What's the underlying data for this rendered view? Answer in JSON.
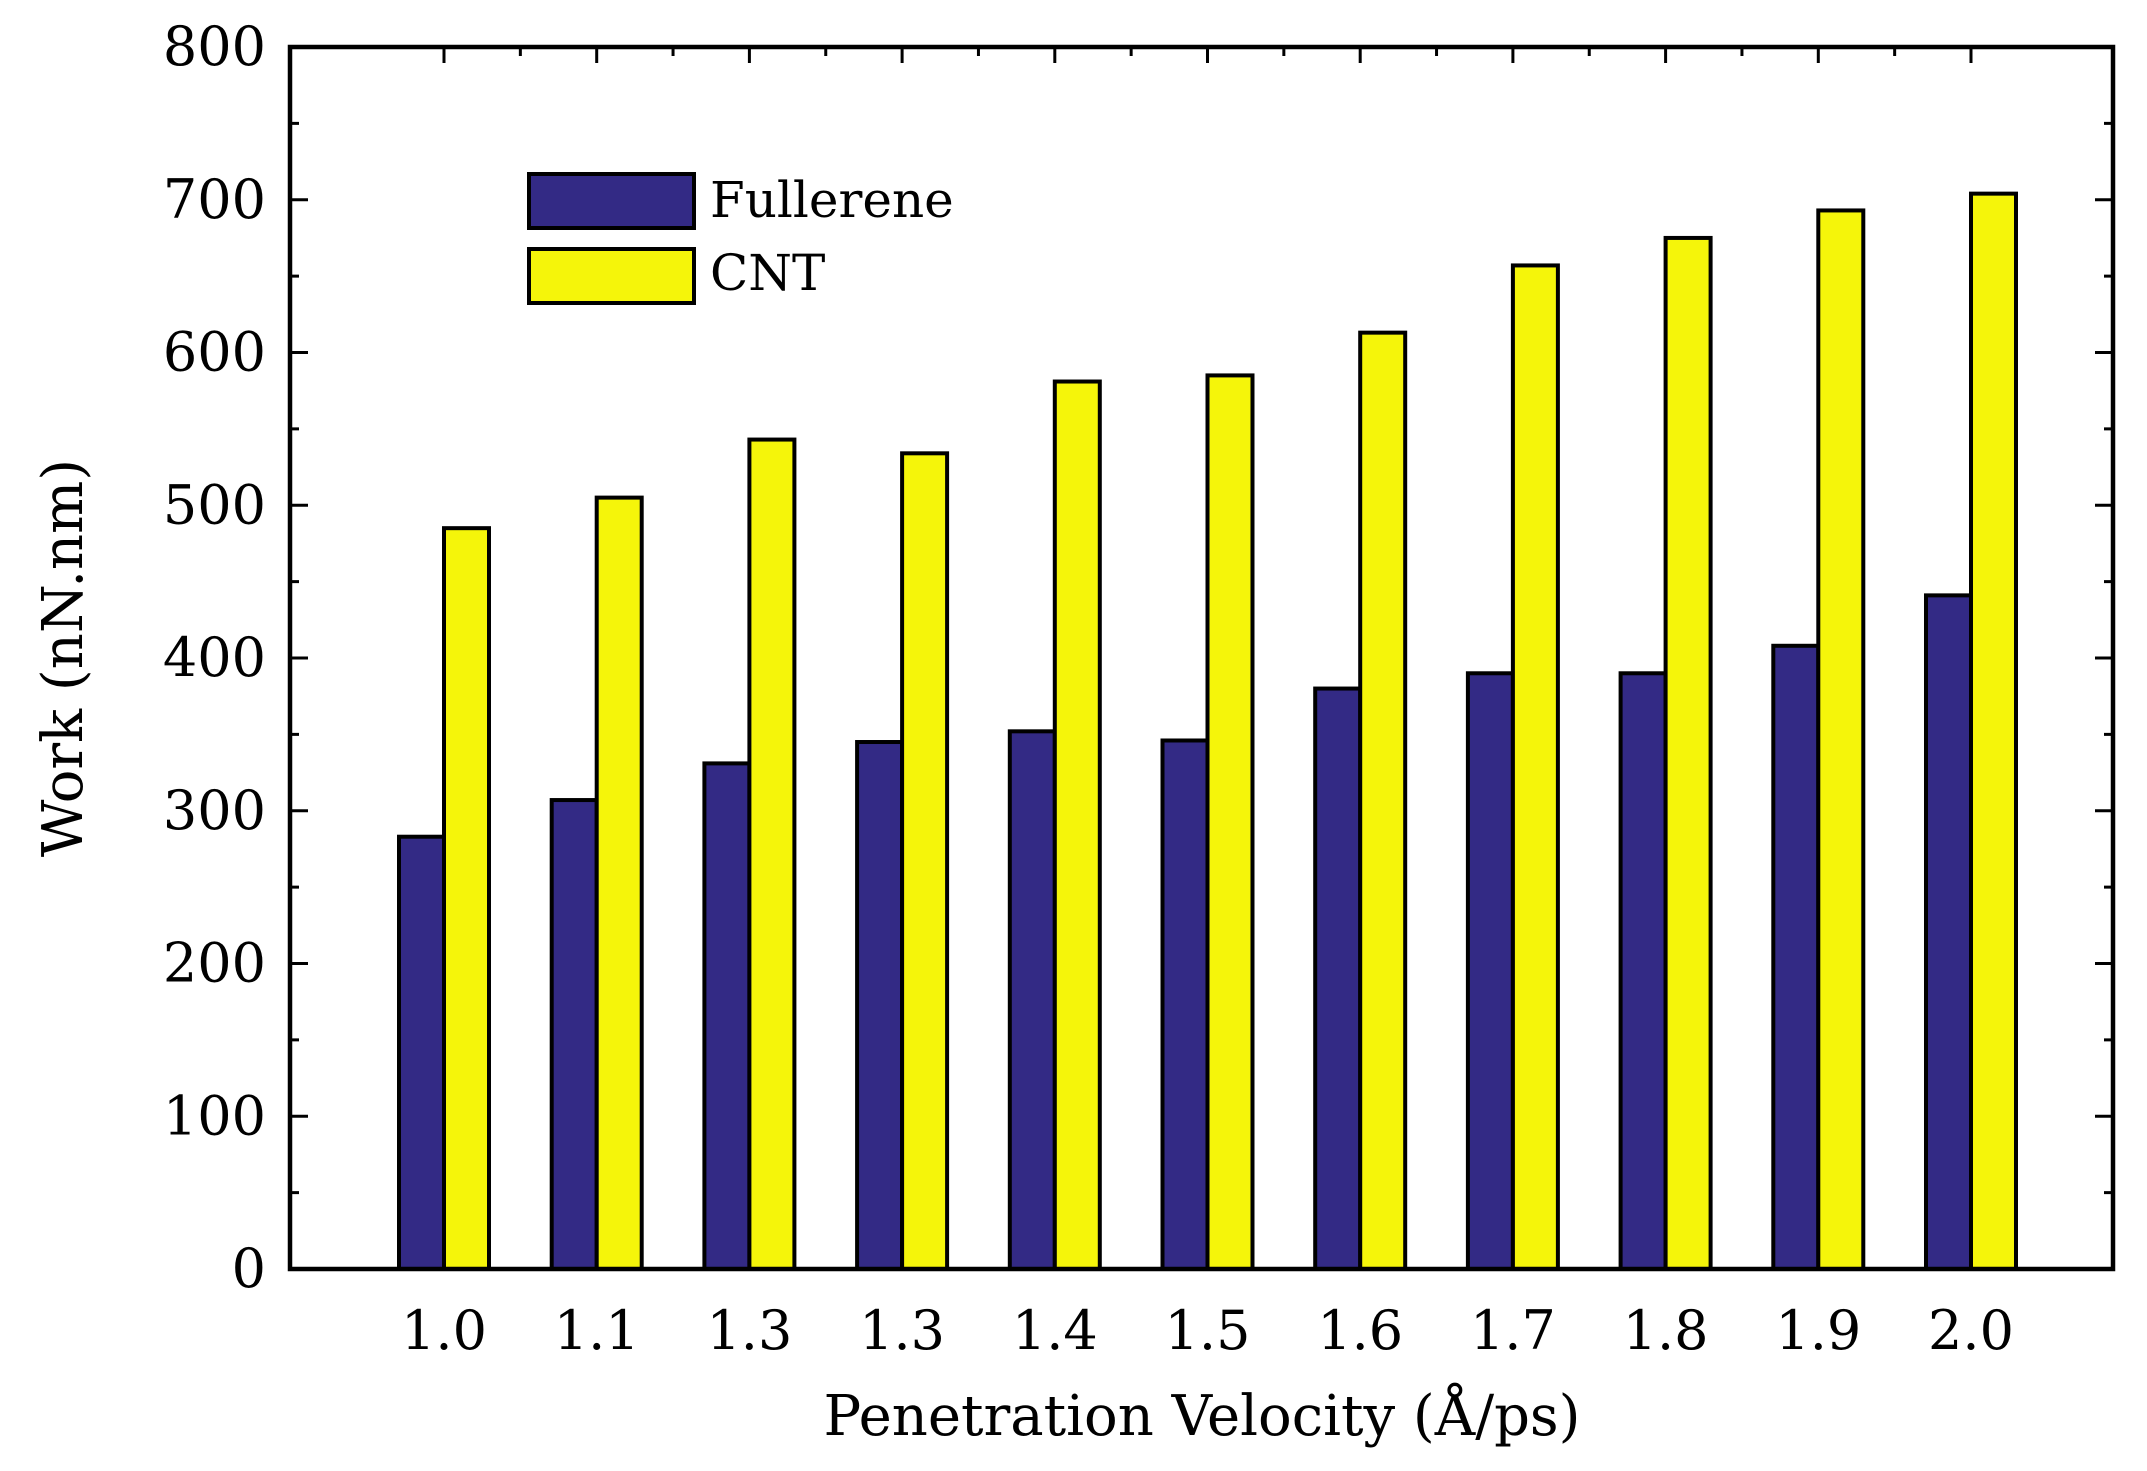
{
  "chart_data": {
    "type": "bar",
    "title": "",
    "xlabel": "Penetration Velocity (Å/ps)",
    "ylabel": "Work (nN.nm)",
    "categories": [
      "1.0",
      "1.1",
      "1.3",
      "1.3",
      "1.4",
      "1.5",
      "1.6",
      "1.7",
      "1.8",
      "1.9",
      "2.0"
    ],
    "series": [
      {
        "name": "Fullerene",
        "color": "#332a85",
        "values": [
          283,
          307,
          331,
          345,
          352,
          346,
          380,
          390,
          390,
          408,
          441
        ]
      },
      {
        "name": "CNT",
        "color": "#f5f50a",
        "values": [
          485,
          505,
          543,
          534,
          581,
          585,
          613,
          657,
          675,
          693,
          704
        ]
      }
    ],
    "ylim": [
      0,
      800
    ],
    "yticks": [
      "0",
      "100",
      "200",
      "300",
      "400",
      "500",
      "600",
      "700",
      "800"
    ],
    "legend_position": "top-left",
    "grid": false
  }
}
